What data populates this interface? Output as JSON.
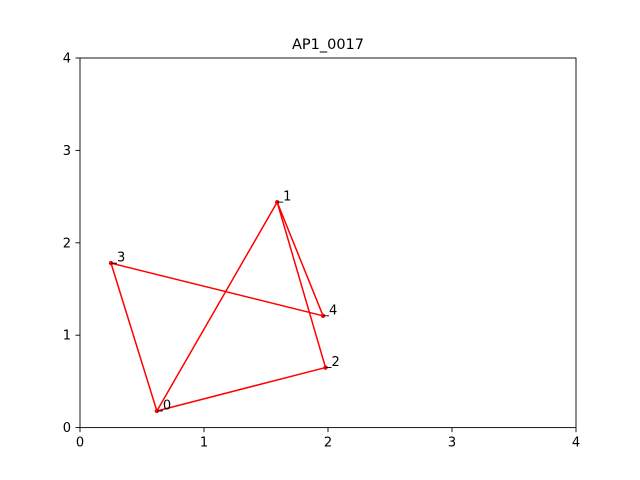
{
  "chart_data": {
    "type": "line",
    "title": "AP1_0017",
    "xlabel": "",
    "ylabel": "",
    "xlim": [
      0,
      4
    ],
    "ylim": [
      0,
      4
    ],
    "x_ticks": [
      "0",
      "1",
      "2",
      "3",
      "4"
    ],
    "y_ticks": [
      "0",
      "1",
      "2",
      "3",
      "4"
    ],
    "grid": false,
    "line_color": "#ff0000",
    "points": [
      {
        "label": "0",
        "x": 0.62,
        "y": 0.18
      },
      {
        "label": "1",
        "x": 1.59,
        "y": 2.44
      },
      {
        "label": "2",
        "x": 1.98,
        "y": 0.65
      },
      {
        "label": "3",
        "x": 0.25,
        "y": 1.78
      },
      {
        "label": "4",
        "x": 1.96,
        "y": 1.21
      }
    ],
    "path_order": [
      0,
      1,
      4,
      3,
      0,
      2,
      1
    ]
  }
}
